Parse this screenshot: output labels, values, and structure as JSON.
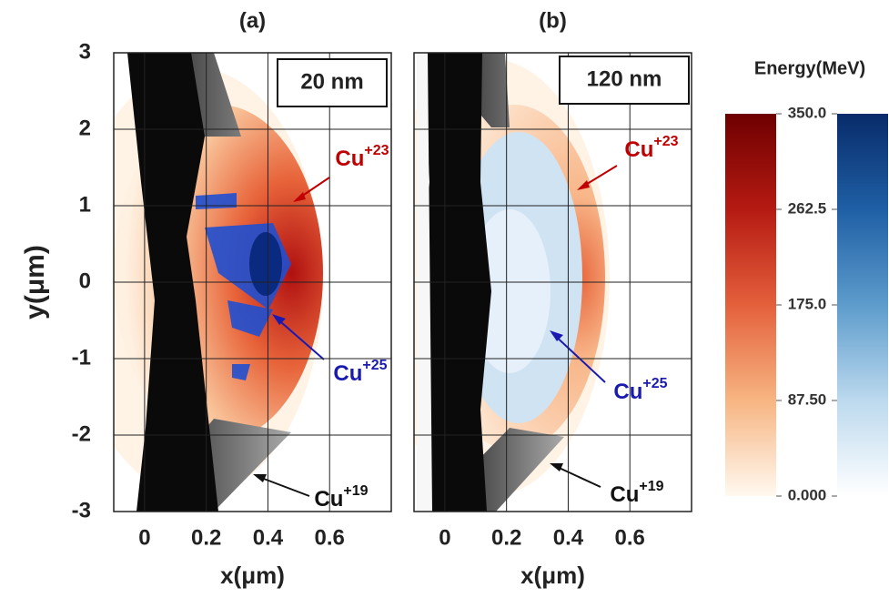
{
  "chart_data": [
    {
      "type": "scatter",
      "title": "(a)",
      "label": "20 nm",
      "xlabel": "x(μm)",
      "ylabel": "y(μm)",
      "xlim": [
        -0.1,
        0.8
      ],
      "ylim": [
        -3,
        3
      ],
      "xticks": [
        0,
        0.2,
        0.4,
        0.6
      ],
      "yticks": [
        -3,
        -2,
        -1,
        0,
        1,
        2,
        3
      ],
      "grid": true,
      "annotations": [
        {
          "text": "Cu",
          "sup": "+23",
          "color": "#c00000"
        },
        {
          "text": "Cu",
          "sup": "+25",
          "color": "#1a1ab0"
        },
        {
          "text": "Cu",
          "sup": "+19",
          "color": "#111111"
        }
      ]
    },
    {
      "type": "scatter",
      "title": "(b)",
      "label": "120 nm",
      "xlabel": "x(μm)",
      "xlim": [
        -0.1,
        0.8
      ],
      "ylim": [
        -3,
        3
      ],
      "xticks": [
        0,
        0.2,
        0.4,
        0.6
      ],
      "yticks": [
        -3,
        -2,
        -1,
        0,
        1,
        2,
        3
      ],
      "grid": true,
      "annotations": [
        {
          "text": "Cu",
          "sup": "+23",
          "color": "#c00000"
        },
        {
          "text": "Cu",
          "sup": "+25",
          "color": "#1a1ab0"
        },
        {
          "text": "Cu",
          "sup": "+19",
          "color": "#111111"
        }
      ]
    },
    {
      "type": "colorbar",
      "title": "Energy(MeV)",
      "ylim": [
        0,
        350
      ],
      "yticks": [
        {
          "value": 350,
          "label": "350.0"
        },
        {
          "value": 262.5,
          "label": "262.5"
        },
        {
          "value": 175,
          "label": "175.0"
        },
        {
          "value": 87.5,
          "label": "87.50"
        },
        {
          "value": 0,
          "label": "0.000"
        }
      ],
      "colors": [
        [
          "#fff9f0",
          "#f7b582",
          "#e4603c",
          "#b51a12",
          "#6e0000"
        ],
        [
          "#ffffff",
          "#bcd9ee",
          "#5d9ccc",
          "#1f5fa5",
          "#082b6a"
        ]
      ]
    }
  ]
}
